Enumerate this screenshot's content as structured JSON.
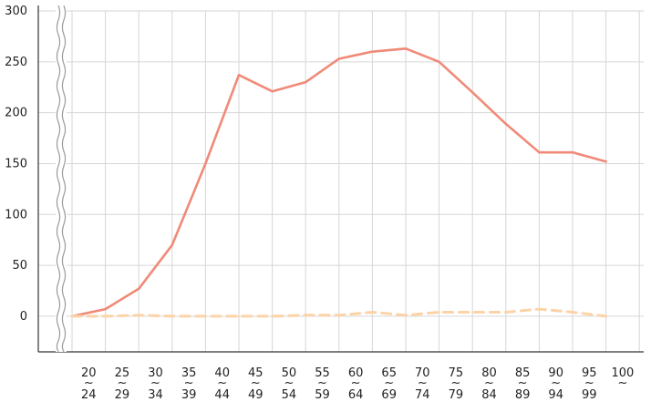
{
  "chart_data": {
    "type": "line",
    "x_ranges": [
      {
        "start": "20",
        "end": "24"
      },
      {
        "start": "25",
        "end": "29"
      },
      {
        "start": "30",
        "end": "34"
      },
      {
        "start": "35",
        "end": "39"
      },
      {
        "start": "40",
        "end": "44"
      },
      {
        "start": "45",
        "end": "49"
      },
      {
        "start": "50",
        "end": "54"
      },
      {
        "start": "55",
        "end": "59"
      },
      {
        "start": "60",
        "end": "64"
      },
      {
        "start": "65",
        "end": "69"
      },
      {
        "start": "70",
        "end": "74"
      },
      {
        "start": "75",
        "end": "79"
      },
      {
        "start": "80",
        "end": "84"
      },
      {
        "start": "85",
        "end": "89"
      },
      {
        "start": "90",
        "end": "94"
      },
      {
        "start": "95",
        "end": "99"
      },
      {
        "start": "100",
        "end": ""
      }
    ],
    "tilde": "~",
    "ylim": [
      -35,
      300
    ],
    "yticks": [
      "300",
      "250",
      "200",
      "150",
      "100",
      "50",
      "0"
    ],
    "ytick_values": [
      300,
      250,
      200,
      150,
      100,
      50,
      0
    ],
    "y_axis_break": true,
    "grid": true,
    "series": [
      {
        "style": "solid",
        "color": "#f08a78",
        "values": [
          0,
          7,
          27,
          70,
          150,
          237,
          221,
          230,
          253,
          260,
          263,
          250,
          220,
          189,
          161,
          161,
          152
        ]
      },
      {
        "style": "dashed",
        "color": "#fcd3a6",
        "values": [
          0,
          0,
          1,
          0,
          0,
          0,
          0,
          1,
          1,
          4,
          1,
          4,
          4,
          4,
          7,
          4,
          0
        ]
      }
    ]
  }
}
